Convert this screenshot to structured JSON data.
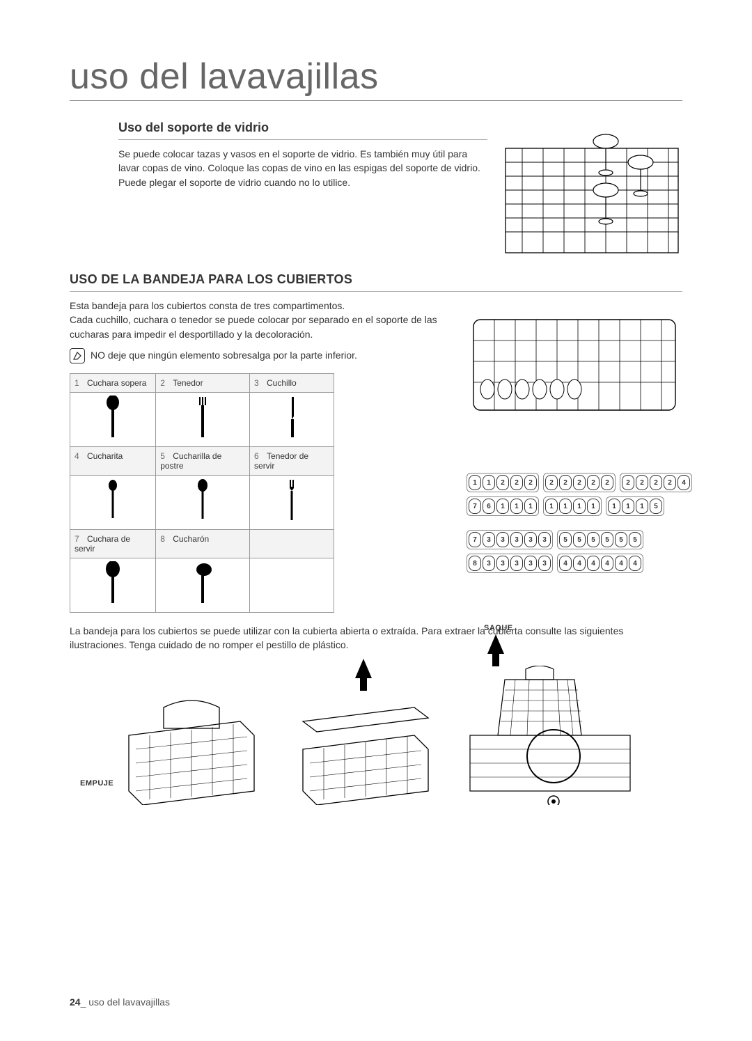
{
  "page": {
    "title": "uso del lavavajillas",
    "number": "24",
    "footer_text": "uso del lavavajillas"
  },
  "section_glass": {
    "heading": "Uso del soporte de vidrio",
    "body": "Se puede colocar tazas y vasos en el soporte de vidrio. Es también muy útil para lavar copas de vino. Coloque las copas de vino en las espigas del soporte de vidrio. Puede plegar el soporte de vidrio cuando no lo utilice."
  },
  "section_cutlery": {
    "heading": "USO DE LA BANDEJA PARA LOS CUBIERTOS",
    "body1": "Esta bandeja para los cubiertos consta de tres compartimentos.",
    "body2": "Cada cuchillo, cuchara o tenedor se puede colocar por separado en el soporte de las cucharas para impedir el desportillado y la decoloración.",
    "note": "NO deje que ningún elemento sobresalga por la parte inferior.",
    "items": [
      {
        "n": "1",
        "label": "Cuchara sopera",
        "icon": "soup-spoon"
      },
      {
        "n": "2",
        "label": "Tenedor",
        "icon": "fork"
      },
      {
        "n": "3",
        "label": "Cuchillo",
        "icon": "knife"
      },
      {
        "n": "4",
        "label": "Cucharita",
        "icon": "teaspoon"
      },
      {
        "n": "5",
        "label": "Cucharilla de postre",
        "icon": "dessert-spoon"
      },
      {
        "n": "6",
        "label": "Tenedor de servir",
        "icon": "serving-fork"
      },
      {
        "n": "7",
        "label": "Cuchara de servir",
        "icon": "serving-spoon"
      },
      {
        "n": "8",
        "label": "Cucharón",
        "icon": "ladle"
      }
    ],
    "layout_top": [
      [
        "1",
        "1",
        "2",
        "2",
        "2"
      ],
      [
        "2",
        "2",
        "2",
        "2",
        "2"
      ],
      [
        "2",
        "2",
        "2",
        "2",
        "4"
      ]
    ],
    "layout_top2": [
      [
        "7",
        "6",
        "1",
        "1",
        "1"
      ],
      [
        "1",
        "1",
        "1",
        "1"
      ],
      [
        "1",
        "1",
        "1",
        "5"
      ]
    ],
    "layout_bottom": [
      [
        "7",
        "3",
        "3",
        "3",
        "3",
        "3"
      ],
      [
        "5",
        "5",
        "5",
        "5",
        "5",
        "5"
      ]
    ],
    "layout_bottom2": [
      [
        "8",
        "3",
        "3",
        "3",
        "3",
        "3"
      ],
      [
        "4",
        "4",
        "4",
        "4",
        "4",
        "4"
      ]
    ],
    "body3": "La bandeja para los cubiertos se puede utilizar con la cubierta abierta o extraída. Para extraer la cubierta consulte las siguientes ilustraciones. Tenga cuidado de no romper el pestillo de plástico.",
    "action_push": "EMPUJE",
    "action_pull": "SAQUE"
  },
  "style": {
    "title_color": "#666666",
    "text_color": "#333333",
    "border_color": "#999999",
    "header_bg": "#f3f3f3",
    "title_fontsize": 52,
    "h2_fontsize": 18,
    "h3_fontsize": 18,
    "body_fontsize": 14,
    "table_label_fontsize": 12
  }
}
